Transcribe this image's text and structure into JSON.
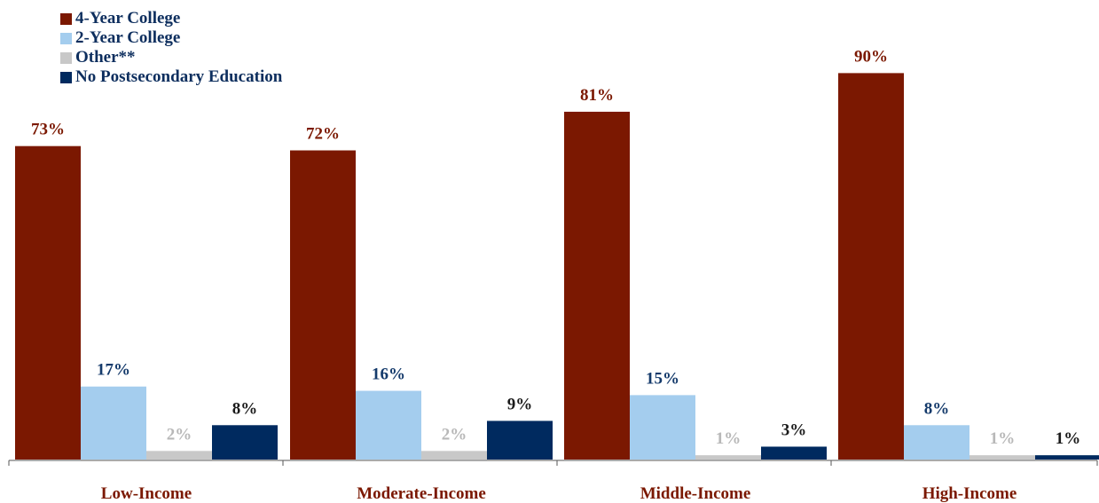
{
  "chart_data": {
    "type": "bar",
    "categories": [
      "Low-Income",
      "Moderate-Income",
      "Middle-Income",
      "High-Income"
    ],
    "series": [
      {
        "name": "4-Year College",
        "values": [
          73,
          72,
          81,
          90
        ],
        "labels": [
          "73%",
          "72%",
          "81%",
          "90%"
        ],
        "color": "#7b1801",
        "label_color": "#7b1801"
      },
      {
        "name": "2-Year College",
        "values": [
          17,
          16,
          15,
          8
        ],
        "labels": [
          "17%",
          "16%",
          "15%",
          "8%"
        ],
        "color": "#a4cdee",
        "label_color": "#143a6b"
      },
      {
        "name": "Other**",
        "values": [
          2,
          2,
          1,
          1
        ],
        "labels": [
          "2%",
          "2%",
          "1%",
          "1%"
        ],
        "color": "#c8c8c8",
        "label_color": "#b8b8b8"
      },
      {
        "name": "No Postsecondary Education",
        "values": [
          8,
          9,
          3,
          1
        ],
        "labels": [
          "8%",
          "9%",
          "3%",
          "1%"
        ],
        "color": "#002a5f",
        "label_color": "#1a1a1a"
      }
    ],
    "category_label_color": "#7b1801",
    "ylim": [
      0,
      100
    ],
    "grid": false,
    "legend_position": "top-left",
    "title": "",
    "xlabel": "",
    "ylabel": ""
  }
}
